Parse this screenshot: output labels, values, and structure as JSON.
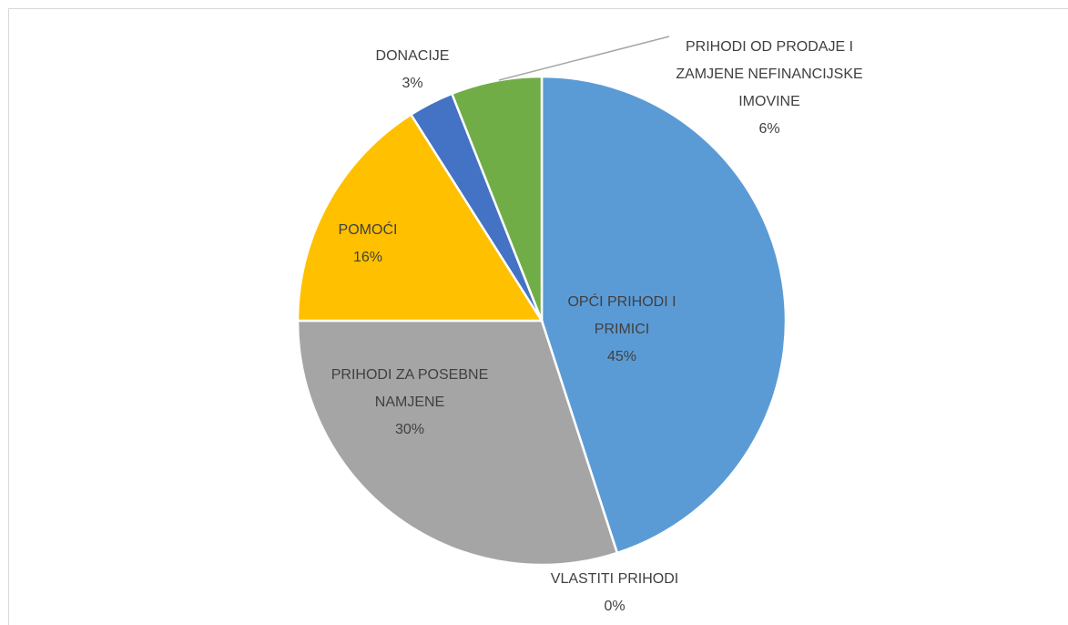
{
  "chart_data": {
    "type": "pie",
    "categories": [
      "OPĆI PRIHODI I PRIMICI",
      "VLASTITI PRIHODI",
      "PRIHODI ZA POSEBNE NAMJENE",
      "POMOĆI",
      "DONACIJE",
      "PRIHODI OD PRODAJE I ZAMJENE NEFINANCIJSKE IMOVINE"
    ],
    "values": [
      45,
      0,
      30,
      16,
      3,
      6
    ],
    "value_labels": [
      "45%",
      "0%",
      "30%",
      "16%",
      "3%",
      "6%"
    ],
    "colors": [
      "#5b9bd5",
      "#ed7d31",
      "#a5a5a5",
      "#ffc000",
      "#4472c4",
      "#70ad47"
    ]
  }
}
